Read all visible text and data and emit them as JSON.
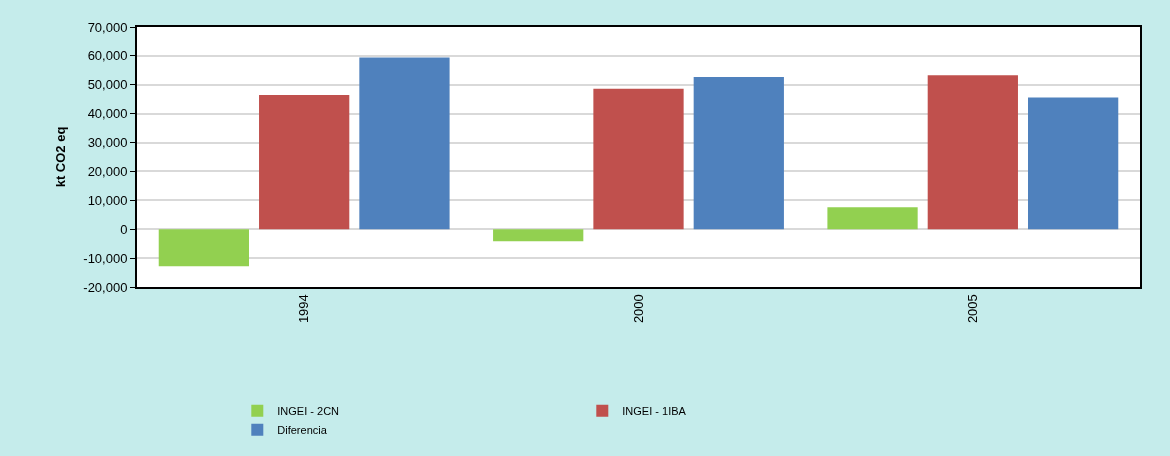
{
  "chart_data": {
    "type": "bar",
    "ylabel": "kt CO2 eq",
    "categories": [
      "1994",
      "2000",
      "2005"
    ],
    "series": [
      {
        "name": "INGEI - 2CN",
        "color": "#92d050",
        "values": [
          -12800,
          -4200,
          7600
        ]
      },
      {
        "name": "INGEI - 1IBA",
        "color": "#c0504d",
        "values": [
          46500,
          48600,
          53300
        ]
      },
      {
        "name": "Diferencia",
        "color": "#4f81bd",
        "values": [
          59400,
          52700,
          45600
        ]
      }
    ],
    "ylim": [
      -20000,
      70000
    ],
    "yticks": [
      {
        "value": -20000,
        "label": "-20,000"
      },
      {
        "value": -10000,
        "label": "-10,000"
      },
      0,
      {
        "value": 10000,
        "label": "10,000"
      },
      {
        "value": 20000,
        "label": "20,000"
      },
      {
        "value": 30000,
        "label": "30,000"
      },
      {
        "value": 40000,
        "label": "40,000"
      },
      {
        "value": 50000,
        "label": "50,000"
      },
      {
        "value": 60000,
        "label": "60,000"
      },
      {
        "value": 70000,
        "label": "70,000"
      }
    ],
    "grid": "y",
    "legend": "bottom"
  }
}
